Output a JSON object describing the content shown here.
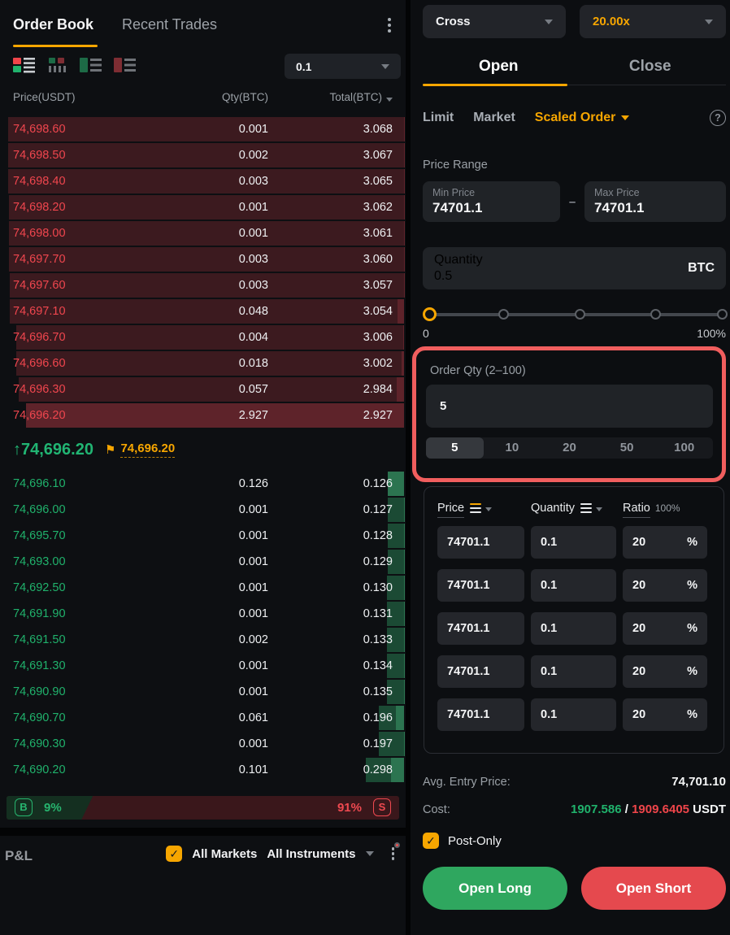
{
  "order_book": {
    "tab_active": "Order Book",
    "tab_inactive": "Recent Trades",
    "precision": "0.1",
    "columns": {
      "price": "Price(USDT)",
      "qty": "Qty(BTC)",
      "total": "Total(BTC)"
    },
    "asks": [
      {
        "price": "74,698.60",
        "qty": "0.001",
        "total": "3.068"
      },
      {
        "price": "74,698.50",
        "qty": "0.002",
        "total": "3.067"
      },
      {
        "price": "74,698.40",
        "qty": "0.003",
        "total": "3.065"
      },
      {
        "price": "74,698.20",
        "qty": "0.001",
        "total": "3.062"
      },
      {
        "price": "74,698.00",
        "qty": "0.001",
        "total": "3.061"
      },
      {
        "price": "74,697.70",
        "qty": "0.003",
        "total": "3.060"
      },
      {
        "price": "74,697.60",
        "qty": "0.003",
        "total": "3.057"
      },
      {
        "price": "74,697.10",
        "qty": "0.048",
        "total": "3.054"
      },
      {
        "price": "74,696.70",
        "qty": "0.004",
        "total": "3.006"
      },
      {
        "price": "74,696.60",
        "qty": "0.018",
        "total": "3.002"
      },
      {
        "price": "74,696.30",
        "qty": "0.057",
        "total": "2.984"
      },
      {
        "price": "74,696.20",
        "qty": "2.927",
        "total": "2.927"
      }
    ],
    "bids": [
      {
        "price": "74,696.10",
        "qty": "0.126",
        "total": "0.126"
      },
      {
        "price": "74,696.00",
        "qty": "0.001",
        "total": "0.127"
      },
      {
        "price": "74,695.70",
        "qty": "0.001",
        "total": "0.128"
      },
      {
        "price": "74,693.00",
        "qty": "0.001",
        "total": "0.129"
      },
      {
        "price": "74,692.50",
        "qty": "0.001",
        "total": "0.130"
      },
      {
        "price": "74,691.90",
        "qty": "0.001",
        "total": "0.131"
      },
      {
        "price": "74,691.50",
        "qty": "0.002",
        "total": "0.133"
      },
      {
        "price": "74,691.30",
        "qty": "0.001",
        "total": "0.134"
      },
      {
        "price": "74,690.90",
        "qty": "0.001",
        "total": "0.135"
      },
      {
        "price": "74,690.70",
        "qty": "0.061",
        "total": "0.196"
      },
      {
        "price": "74,690.30",
        "qty": "0.001",
        "total": "0.197"
      },
      {
        "price": "74,690.20",
        "qty": "0.101",
        "total": "0.298"
      }
    ],
    "last_price_arrow": "↑",
    "last_price": "74,696.20",
    "flag_icon": "⚑",
    "mark_price": "74,696.20",
    "buy_badge": "B",
    "buy_pct": "9%",
    "sell_pct": "91%",
    "sell_badge": "S"
  },
  "pnl": {
    "title": "P&L",
    "checkbox": "✓",
    "all_markets": "All Markets",
    "all_instruments": "All Instruments"
  },
  "trade_panel": {
    "margin_mode": "Cross",
    "leverage": "20.00x",
    "tab_open": "Open",
    "tab_close": "Close",
    "type_limit": "Limit",
    "type_market": "Market",
    "type_scaled": "Scaled Order",
    "help": "?",
    "price_range": {
      "label": "Price Range",
      "min_label": "Min Price",
      "min_value": "74701.1",
      "dash": "–",
      "max_label": "Max Price",
      "max_value": "74701.1"
    },
    "quantity": {
      "label": "Quantity",
      "value": "0.5",
      "unit": "BTC"
    },
    "slider": {
      "min_label": "0",
      "max_label": "100%"
    },
    "order_qty": {
      "label": "Order Qty (2–100)",
      "value": "5",
      "options": [
        "5",
        "10",
        "20",
        "50",
        "100"
      ],
      "selected": "5"
    },
    "scaled_table": {
      "price_header": "Price",
      "quantity_header": "Quantity",
      "ratio_header": "Ratio",
      "ratio_total": "100%",
      "rows": [
        {
          "price": "74701.1",
          "qty": "0.1",
          "ratio": "20",
          "unit": "%"
        },
        {
          "price": "74701.1",
          "qty": "0.1",
          "ratio": "20",
          "unit": "%"
        },
        {
          "price": "74701.1",
          "qty": "0.1",
          "ratio": "20",
          "unit": "%"
        },
        {
          "price": "74701.1",
          "qty": "0.1",
          "ratio": "20",
          "unit": "%"
        },
        {
          "price": "74701.1",
          "qty": "0.1",
          "ratio": "20",
          "unit": "%"
        }
      ]
    },
    "summary": {
      "avg_label": "Avg. Entry Price:",
      "avg_value": "74,701.10",
      "cost_label": "Cost:",
      "cost_long": "1907.586",
      "cost_sep": " / ",
      "cost_short": "1909.6405",
      "cost_unit": " USDT"
    },
    "post_only": {
      "checkbox": "✓",
      "label": "Post-Only"
    },
    "buttons": {
      "long": "Open Long",
      "short": "Open Short"
    }
  },
  "colors": {
    "accent_orange": "#f7a600",
    "green": "#20b26c",
    "red": "#ef454a",
    "annotation_red": "#f15e5e",
    "long_button": "#2fa75f",
    "short_button": "#e5494e"
  }
}
